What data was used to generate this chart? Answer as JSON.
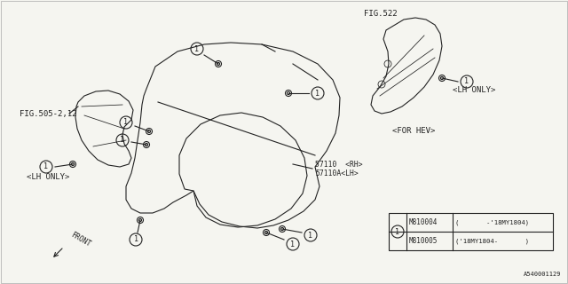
{
  "bg_color": "#f5f5f0",
  "line_color": "#222222",
  "fig_ref_left": "FIG.505-2,12",
  "fig_ref_right": "FIG.522",
  "label_lh_left": "<LH ONLY>",
  "label_lh_right": "<LH ONLY>",
  "label_hev": "<FOR HEV>",
  "part_rh": "57110  <RH>",
  "part_lh": "57110A<LH>",
  "part1_num": "M810004",
  "part1_range": "(       -'18MY1804)",
  "part2_num": "M810005",
  "part2_range": "('18MY1804-       )",
  "front_label": "FRONT",
  "doc_num": "A540001129",
  "border_color": "#aaaaaa"
}
